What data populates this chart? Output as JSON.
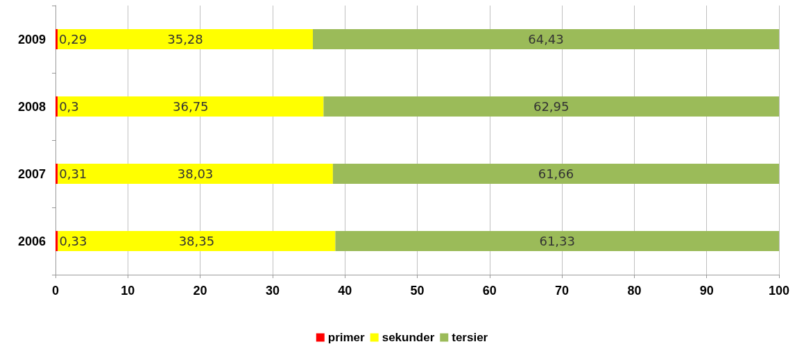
{
  "chart_data": {
    "type": "bar",
    "orientation": "horizontal",
    "stacked": true,
    "categories": [
      "2009",
      "2008",
      "2007",
      "2006"
    ],
    "series": [
      {
        "name": "primer",
        "color": "#ff0000",
        "values": [
          0.29,
          0.3,
          0.31,
          0.33
        ],
        "value_labels": [
          "0,29",
          "0,3",
          "0,31",
          "0,33"
        ]
      },
      {
        "name": "sekunder",
        "color": "#ffff00",
        "values": [
          35.28,
          36.75,
          38.03,
          38.35
        ],
        "value_labels": [
          "35,28",
          "36,75",
          "38,03",
          "38,35"
        ]
      },
      {
        "name": "tersier",
        "color": "#9bbb59",
        "values": [
          64.43,
          62.95,
          61.66,
          61.33
        ],
        "value_labels": [
          "64,43",
          "62,95",
          "61,66",
          "61,33"
        ]
      }
    ],
    "xlim": [
      0,
      100
    ],
    "xticks": [
      0,
      10,
      20,
      30,
      40,
      50,
      60,
      70,
      80,
      90,
      100
    ],
    "grid": "x",
    "legend": "bottom"
  }
}
